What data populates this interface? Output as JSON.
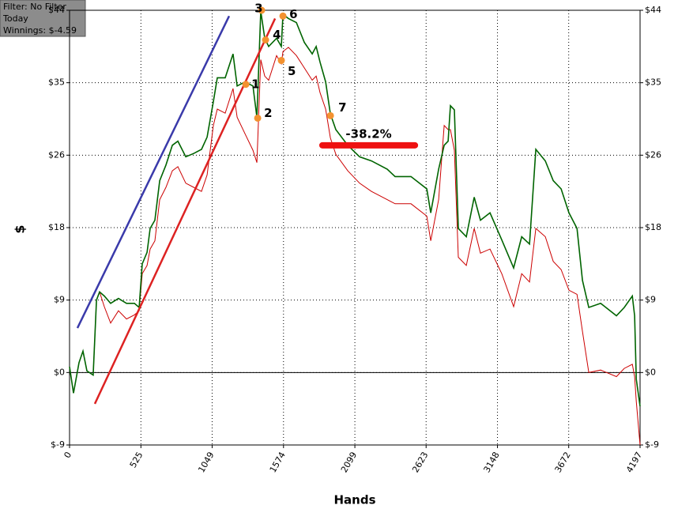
{
  "chart_data": {
    "type": "line",
    "info_lines": [
      "Filter: No Filter",
      "Today",
      "Winnings: $-4.59"
    ],
    "x_label": "Hands",
    "y_label": "$",
    "xlim": [
      0,
      4197
    ],
    "xticks": [
      0,
      525,
      1049,
      1574,
      2099,
      2623,
      3148,
      3672,
      4197
    ],
    "ylim": [
      -8.8,
      44
    ],
    "yticks": [
      {
        "value": -8.8,
        "label": "$-9"
      },
      {
        "value": 0,
        "label": "$0"
      },
      {
        "value": 8.8,
        "label": "$9"
      },
      {
        "value": 17.6,
        "label": "$18"
      },
      {
        "value": 26.4,
        "label": "$26"
      },
      {
        "value": 35.2,
        "label": "$35"
      },
      {
        "value": 44,
        "label": "$44"
      }
    ],
    "grid": true,
    "x": [
      0,
      29,
      70,
      99,
      128,
      174,
      198,
      221,
      256,
      302,
      360,
      419,
      477,
      512,
      535,
      570,
      593,
      628,
      663,
      709,
      756,
      797,
      855,
      913,
      971,
      1012,
      1058,
      1087,
      1145,
      1203,
      1233,
      1291,
      1349,
      1378,
      1407,
      1436,
      1465,
      1523,
      1558,
      1570,
      1610,
      1669,
      1727,
      1785,
      1814,
      1843,
      1884,
      1919,
      1959,
      2047,
      2134,
      2221,
      2337,
      2395,
      2512,
      2628,
      2657,
      2715,
      2756,
      2785,
      2802,
      2831,
      2860,
      2919,
      2977,
      3023,
      3093,
      3180,
      3267,
      3326,
      3384,
      3430,
      3500,
      3558,
      3616,
      3674,
      3733,
      3773,
      3820,
      3907,
      4023,
      4081,
      4140,
      4157,
      4169,
      4197
    ],
    "series": [
      {
        "color": "#006400",
        "values": [
          0.7,
          -2.5,
          1.2,
          2.6,
          0.2,
          -0.3,
          8.8,
          9.8,
          9.3,
          8.4,
          9.0,
          8.4,
          8.4,
          7.9,
          13.2,
          14.6,
          17.5,
          18.5,
          23.3,
          25.2,
          27.6,
          28.1,
          26.2,
          26.6,
          27.1,
          28.6,
          32.9,
          35.8,
          35.8,
          38.7,
          34.8,
          35.3,
          34.8,
          31.0,
          43.9,
          40.6,
          39.6,
          40.6,
          39.6,
          43.5,
          43.0,
          42.5,
          40.1,
          38.7,
          39.6,
          37.7,
          35.3,
          31.4,
          29.5,
          27.6,
          26.2,
          25.7,
          24.7,
          23.8,
          23.8,
          22.3,
          19.4,
          24.7,
          27.6,
          28.1,
          32.4,
          31.9,
          17.5,
          16.5,
          21.3,
          18.5,
          19.4,
          16.1,
          12.7,
          16.5,
          15.6,
          27.1,
          25.7,
          23.3,
          22.3,
          19.4,
          17.5,
          11.2,
          7.9,
          8.4,
          6.9,
          7.9,
          9.3,
          6.9,
          -0.8,
          -4.1
        ]
      },
      {
        "color": "#cc0000",
        "values": [
          0.7,
          -2.5,
          1.2,
          2.6,
          0.2,
          -0.3,
          8.8,
          9.8,
          8.0,
          6.0,
          7.5,
          6.5,
          7.0,
          7.5,
          12.0,
          13.0,
          15.0,
          16.0,
          21.0,
          22.5,
          24.5,
          25.0,
          23.0,
          22.5,
          22.0,
          24.0,
          30.0,
          32.0,
          31.5,
          34.5,
          31.0,
          29.0,
          27.0,
          25.5,
          38.0,
          36.0,
          35.5,
          38.5,
          37.5,
          39.0,
          39.5,
          38.5,
          37.0,
          35.5,
          36.0,
          34.0,
          32.0,
          28.5,
          26.5,
          24.5,
          23.0,
          22.0,
          21.0,
          20.5,
          20.5,
          19.0,
          16.0,
          21.0,
          30.0,
          29.5,
          29.5,
          27.0,
          14.0,
          13.0,
          17.5,
          14.5,
          15.0,
          12.0,
          8.0,
          12.0,
          11.0,
          17.5,
          16.5,
          13.5,
          12.5,
          10.0,
          9.5,
          5.0,
          0.0,
          0.3,
          -0.5,
          0.5,
          1.0,
          -0.5,
          -3.5,
          -8.8
        ]
      }
    ],
    "trendlines": [
      {
        "color": "#3a3aaa",
        "x": [
          58,
          1174
        ],
        "y": [
          5.4,
          43.3
        ]
      },
      {
        "color": "#dd2222",
        "x": [
          186,
          1512
        ],
        "y": [
          -3.8,
          43.0
        ]
      }
    ],
    "annotations": [
      {
        "label": "1",
        "x": 1297,
        "y": 35.0
      },
      {
        "label": "2",
        "x": 1384,
        "y": 30.9
      },
      {
        "label": "3",
        "x": 1413,
        "y": 44.0
      },
      {
        "label": "4",
        "x": 1442,
        "y": 40.4
      },
      {
        "label": "5",
        "x": 1558,
        "y": 37.9
      },
      {
        "label": "6",
        "x": 1570,
        "y": 43.3
      },
      {
        "label": "7",
        "x": 1919,
        "y": 31.2
      }
    ],
    "drawdown": {
      "label": "-38.2%",
      "x": [
        1860,
        2541
      ],
      "y": 27.6
    }
  }
}
